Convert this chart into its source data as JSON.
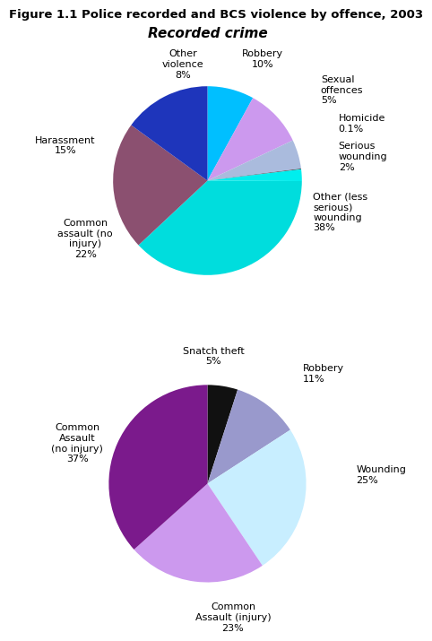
{
  "title": "Figure 1.1 Police recorded and BCS violence by offence, 2003",
  "pie1_subtitle": "Recorded crime",
  "pie1_values": [
    8,
    10,
    5,
    0.1,
    2,
    38,
    22,
    15
  ],
  "pie1_colors": [
    "#00BFFF",
    "#CC99EE",
    "#AABBDD",
    "#111111",
    "#00EEEE",
    "#00DDDD",
    "#8B5070",
    "#1E35BB"
  ],
  "pie2_values": [
    5,
    11,
    25,
    23,
    37
  ],
  "pie2_colors": [
    "#111111",
    "#9999CC",
    "#C8EEFF",
    "#CC99EE",
    "#7B1A8C"
  ],
  "bg_color": "#FFFFFF",
  "label_fontsize": 8.0,
  "title_fontsize": 9.5
}
